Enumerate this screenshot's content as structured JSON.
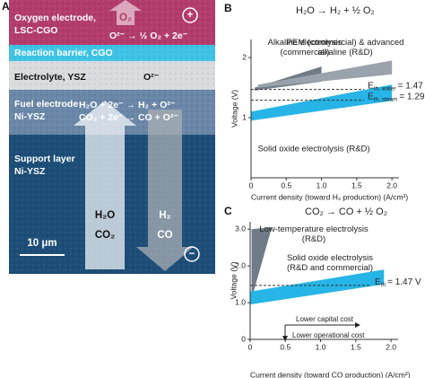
{
  "panel_a": {
    "letter": "A",
    "oxygen_electrode": [
      "Oxygen electrode,",
      "LSC-CGO"
    ],
    "o2": "O₂",
    "plus": "+",
    "oxygen_reaction": "O²⁻ → ½ O₂ + 2e⁻",
    "reaction_barrier": "Reaction barrier, CGO",
    "electrolyte": "Electrolyte, YSZ",
    "electrolyte_ion": "O²⁻",
    "fuel_electrode": [
      "Fuel electrode",
      "Ni-YSZ"
    ],
    "fuel_reactions": [
      "H₂O + 2e⁻ → H₂ + O²⁻",
      "CO₂ + 2e⁻ → CO + O²⁻"
    ],
    "support_layer": [
      "Support layer",
      "Ni-YSZ"
    ],
    "inputs": [
      "H₂O",
      "CO₂"
    ],
    "outputs": [
      "H₂",
      "CO"
    ],
    "scale_bar": "10 μm",
    "minus": "−"
  },
  "chart_data": [
    {
      "type": "band",
      "letter": "B",
      "title": "H₂O → H₂ + ½ O₂",
      "x_label": "Current density (toward H₂ production) (A/cm²)",
      "y_label": "Voltage (V)",
      "xlim": [
        0,
        2.1
      ],
      "ylim": [
        0,
        2.3
      ],
      "xticks": [
        0,
        0.5,
        {
          "value": 1,
          "label": "1.0"
        },
        1.5,
        {
          "value": 2,
          "label": "2.0"
        }
      ],
      "yticks": [
        1,
        2
      ],
      "series": [
        {
          "name": "Alkaline electrolysis (commercial)",
          "color": "#6f7b86",
          "x": [
            0.05,
            1.0
          ],
          "lower": [
            1.45,
            1.6
          ],
          "upper": [
            1.5,
            1.85
          ]
        },
        {
          "name": "PEM (commercial) & advanced alkaline (R&D)",
          "color": "#9aa3ab",
          "x": [
            0.1,
            2.0
          ],
          "lower": [
            1.5,
            1.72
          ],
          "upper": [
            1.55,
            1.95
          ]
        },
        {
          "name": "Solid oxide electrolysis (R&D)",
          "color": "#27b4e6",
          "x": [
            0,
            2.0
          ],
          "lower": [
            0.95,
            1.28
          ],
          "upper": [
            1.1,
            1.55
          ]
        }
      ],
      "reference_lines": [
        {
          "value": 1.47,
          "symbol": "E",
          "subscript": "th, water",
          "label": "= 1.47 V"
        },
        {
          "value": 1.29,
          "symbol": "E",
          "subscript": "th, steam",
          "label": "= 1.29 V"
        }
      ]
    },
    {
      "type": "band",
      "letter": "C",
      "title": "CO₂ → CO + ½ O₂",
      "x_label": "Current density (toward CO production) (A/cm²)",
      "y_label": "Voltage (V)",
      "xlim": [
        0,
        2.1
      ],
      "ylim": [
        0,
        3.2
      ],
      "xticks": [
        0,
        0.5,
        {
          "value": 1,
          "label": "1.0"
        },
        1.5,
        {
          "value": 2,
          "label": "2.0"
        }
      ],
      "yticks": [
        0,
        {
          "value": 1,
          "label": "1.0"
        },
        {
          "value": 2,
          "label": "2.0"
        },
        {
          "value": 3,
          "label": "3.0"
        }
      ],
      "series": [
        {
          "name": "Low-temperature electrolysis (R&D)",
          "color": "#6f7b86",
          "x": [
            0.02,
            0.3
          ],
          "lower": [
            1.1,
            3.0
          ],
          "upper": [
            3.0,
            3.05
          ]
        },
        {
          "name": "Solid oxide electrolysis (R&D and commercial)",
          "color": "#27b4e6",
          "x": [
            0,
            1.9
          ],
          "lower": [
            0.95,
            1.5
          ],
          "upper": [
            1.3,
            1.9
          ]
        }
      ],
      "reference_lines": [
        {
          "value": 1.47,
          "symbol": "E",
          "subscript": "th",
          "label": "= 1.47 V"
        }
      ],
      "arrows": [
        "Lower capital cost",
        "Lower operational cost"
      ]
    }
  ]
}
